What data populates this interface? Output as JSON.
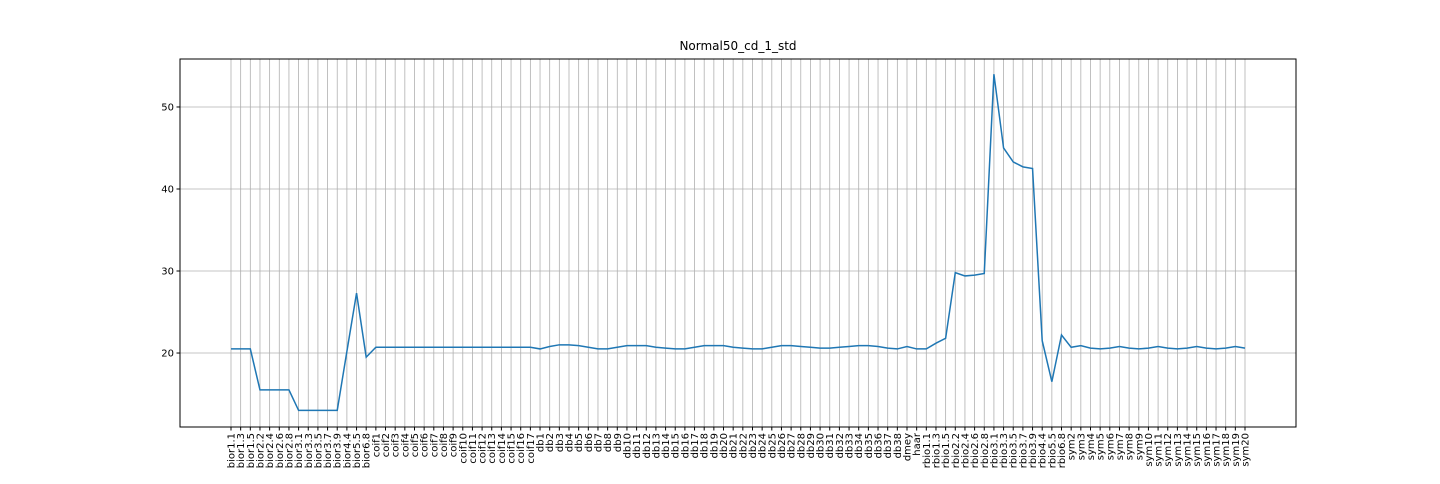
{
  "chart_data": {
    "type": "line",
    "title": "Normal50_cd_1_std",
    "categories": [
      "bior1.1",
      "bior1.3",
      "bior1.5",
      "bior2.2",
      "bior2.4",
      "bior2.6",
      "bior2.8",
      "bior3.1",
      "bior3.3",
      "bior3.5",
      "bior3.7",
      "bior3.9",
      "bior4.4",
      "bior5.5",
      "bior6.8",
      "coif1",
      "coif2",
      "coif3",
      "coif4",
      "coif5",
      "coif6",
      "coif7",
      "coif8",
      "coif9",
      "coif10",
      "coif11",
      "coif12",
      "coif13",
      "coif14",
      "coif15",
      "coif16",
      "coif17",
      "db1",
      "db2",
      "db3",
      "db4",
      "db5",
      "db6",
      "db7",
      "db8",
      "db9",
      "db10",
      "db11",
      "db12",
      "db13",
      "db14",
      "db15",
      "db16",
      "db17",
      "db18",
      "db19",
      "db20",
      "db21",
      "db22",
      "db23",
      "db24",
      "db25",
      "db26",
      "db27",
      "db28",
      "db29",
      "db30",
      "db31",
      "db32",
      "db33",
      "db34",
      "db35",
      "db36",
      "db37",
      "db38",
      "dmey",
      "haar",
      "rbio1.1",
      "rbio1.3",
      "rbio1.5",
      "rbio2.2",
      "rbio2.4",
      "rbio2.6",
      "rbio2.8",
      "rbio3.1",
      "rbio3.3",
      "rbio3.5",
      "rbio3.7",
      "rbio3.9",
      "rbio4.4",
      "rbio5.5",
      "rbio6.8",
      "sym2",
      "sym3",
      "sym4",
      "sym5",
      "sym6",
      "sym7",
      "sym8",
      "sym9",
      "sym10",
      "sym11",
      "sym12",
      "sym13",
      "sym14",
      "sym15",
      "sym16",
      "sym17",
      "sym18",
      "sym19",
      "sym20"
    ],
    "series": [
      {
        "color": "#1f77b4",
        "values": [
          20.5,
          20.5,
          20.5,
          15.5,
          15.5,
          15.5,
          15.5,
          13,
          13,
          13,
          13,
          13,
          20.2,
          27.3,
          19.5,
          20.7,
          20.7,
          20.7,
          20.7,
          20.7,
          20.7,
          20.7,
          20.7,
          20.7,
          20.7,
          20.7,
          20.7,
          20.7,
          20.7,
          20.7,
          20.7,
          20.7,
          20.5,
          20.8,
          21.0,
          21.0,
          20.9,
          20.7,
          20.5,
          20.5,
          20.7,
          20.9,
          20.9,
          20.9,
          20.7,
          20.6,
          20.5,
          20.5,
          20.7,
          20.9,
          20.9,
          20.9,
          20.7,
          20.6,
          20.5,
          20.5,
          20.7,
          20.9,
          20.9,
          20.8,
          20.7,
          20.6,
          20.6,
          20.7,
          20.8,
          20.9,
          20.9,
          20.8,
          20.6,
          20.5,
          20.8,
          20.5,
          20.5,
          21.2,
          21.8,
          29.8,
          29.4,
          29.5,
          29.7,
          54,
          45,
          43.3,
          42.7,
          42.5,
          21.5,
          16.5,
          22.2,
          20.7,
          20.9,
          20.6,
          20.5,
          20.6,
          20.8,
          20.6,
          20.5,
          20.6,
          20.8,
          20.6,
          20.5,
          20.6,
          20.8,
          20.6,
          20.5,
          20.6,
          20.8,
          20.6
        ]
      }
    ],
    "ylim": [
      10.98,
      55.85
    ],
    "yticks": [
      20,
      30,
      40,
      50
    ],
    "grid": true
  }
}
